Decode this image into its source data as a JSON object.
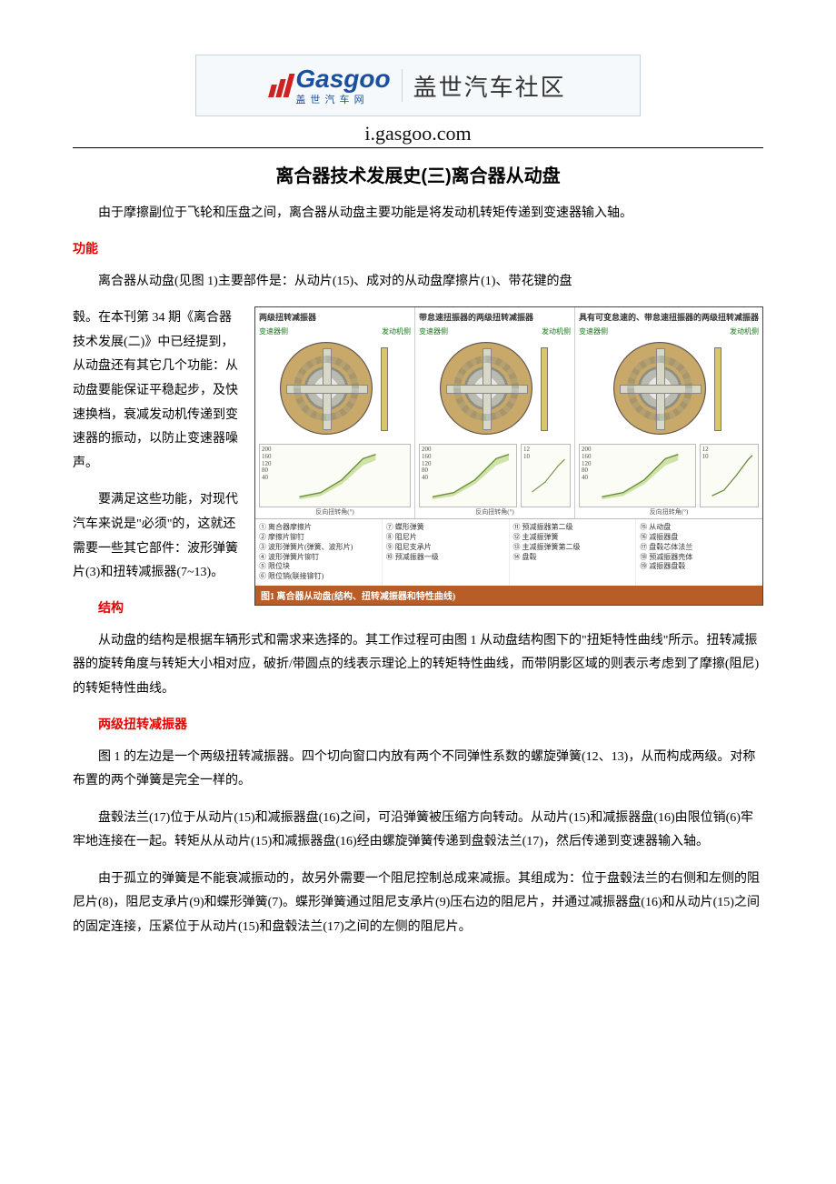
{
  "header": {
    "logo_main": "Gasgoo",
    "logo_sub": "盖 世 汽 车 网",
    "banner_right": "盖世汽车社区",
    "site_url": "i.gasgoo.com"
  },
  "article": {
    "title": "离合器技术发展史(三)离合器从动盘",
    "intro": "由于摩擦副位于飞轮和压盘之间，离合器从动盘主要功能是将发动机转矩传递到变速器输入轴。",
    "sec_functions": "功能",
    "func_p1_lead": "离合器从动盘(见图 1)主要部件是：从动片(15)、成对的从动盘摩擦片(1)、带花键的盘",
    "func_p1_rest": "毂。在本刊第 34 期《离合器技术发展(二)》中已经提到，从动盘还有其它几个功能：从动盘要能保证平稳起步，及快速换档，衰减发动机传递到变速器的振动，以防止变速器噪声。",
    "func_p2": "要满足这些功能，对现代汽车来说是\"必须\"的，这就还需要一些其它部件：波形弹簧片(3)和扭转减振器(7~13)。",
    "sec_structure": "结构",
    "struct_p1": "从动盘的结构是根据车辆形式和需求来选择的。其工作过程可由图 1 从动盘结构图下的\"扭矩特性曲线\"所示。扭转减振器的旋转角度与转矩大小相对应，破折/带圆点的线表示理论上的转矩特性曲线，而带阴影区域的则表示考虑到了摩擦(阻尼)的转矩特性曲线。",
    "sub_two_stage": "两级扭转减振器",
    "two_p1": "图 1 的左边是一个两级扭转减振器。四个切向窗口内放有两个不同弹性系数的螺旋弹簧(12、13)，从而构成两级。对称布置的两个弹簧是完全一样的。",
    "two_p2": "盘毂法兰(17)位于从动片(15)和减振器盘(16)之间，可沿弹簧被压缩方向转动。从动片(15)和减振器盘(16)由限位销(6)牢牢地连接在一起。转矩从从动片(15)和减振器盘(16)经由螺旋弹簧传递到盘毂法兰(17)，然后传递到变速器输入轴。",
    "two_p3": "由于孤立的弹簧是不能衰减振动的，故另外需要一个阻尼控制总成来减振。其组成为：位于盘毂法兰的右侧和左侧的阻尼片(8)，阻尼支承片(9)和蝶形弹簧(7)。蝶形弹簧通过阻尼支承片(9)压右边的阻尼片，并通过减振器盘(16)和从动片(15)之间的固定连接，压紧位于从动片(15)和盘毂法兰(17)之间的左侧的阻尼片。"
  },
  "figure1": {
    "col_titles": [
      "两级扭转减振器",
      "带怠速扭振器的两级扭转减振器",
      "具有可变怠速的、带怠速扭振器的两级扭转减振器"
    ],
    "disc_top_labels": [
      "变速器侧",
      "发动机侧"
    ],
    "axis": {
      "y_ticks": [
        200,
        160,
        120,
        80,
        40
      ],
      "y_label_1": "转矩(Nm)",
      "x_ticks": "2 4 6 8",
      "x_label": "反向扭转角(°)",
      "idle_y": [
        12,
        10,
        8
      ],
      "idle_label": "转矩(Nm)",
      "idle_x": "1 2 3 4 5",
      "curve_color": "#6b8f3a",
      "shade_color": "#cfe3a8",
      "grid_color": "#d6d6c8",
      "bg_color": "#fafcf5"
    },
    "legend_cols": [
      [
        "① 离合器摩擦片",
        "② 摩擦片铆钉",
        "③ 波形弹簧片(弹簧、波形片)",
        "④ 波形弹簧片铆钉",
        "⑤ 限位块",
        "⑥ 限位销(联接铆钉)"
      ],
      [
        "⑦ 蝶形弹簧",
        "⑧ 阻尼片",
        "⑨ 阻尼支承片",
        "⑩ 预减振器一级"
      ],
      [
        "⑪ 预减振器第二级",
        "⑫ 主减振弹簧",
        "⑬ 主减振弹簧第二级",
        "⑭ 盘毂"
      ],
      [
        "⑮ 从动盘",
        "⑯ 减振器盘",
        "⑰ 盘毂芯体法兰",
        "⑱ 预减振器壳体",
        "⑲ 减振器盘毂"
      ]
    ],
    "caption": "图1 离合器从动盘(结构、扭转减振器和特性曲线)"
  }
}
